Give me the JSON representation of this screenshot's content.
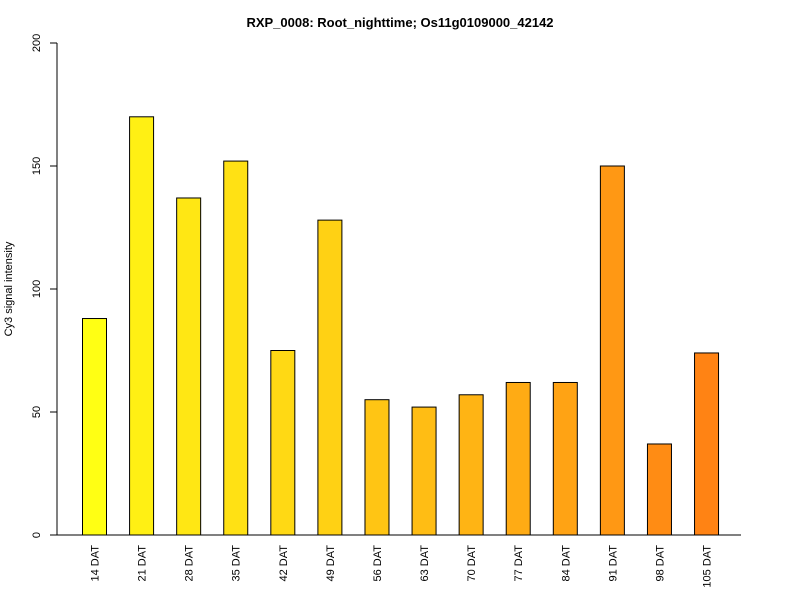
{
  "chart_data": {
    "type": "bar",
    "title": "RXP_0008: Root_nighttime; Os11g0109000_42142",
    "xlabel": "",
    "ylabel": "Cy3 signal intensity",
    "ylim": [
      0,
      200
    ],
    "yticks": [
      0,
      50,
      100,
      150,
      200
    ],
    "grid": false,
    "legend": "none",
    "categories": [
      "14 DAT",
      "21 DAT",
      "28 DAT",
      "35 DAT",
      "42 DAT",
      "49 DAT",
      "56 DAT",
      "63 DAT",
      "70 DAT",
      "77 DAT",
      "84 DAT",
      "91 DAT",
      "98 DAT",
      "105 DAT"
    ],
    "values": [
      88,
      170,
      137,
      152,
      75,
      128,
      55,
      52,
      57,
      62,
      62,
      150,
      37,
      74
    ],
    "colors": [
      "#FFFF14",
      "#FFF014",
      "#FFE714",
      "#FFE114",
      "#FFD914",
      "#FFD114",
      "#FFC514",
      "#FFBD14",
      "#FFB414",
      "#FFAB14",
      "#FFA314",
      "#FF9814",
      "#FF8C14",
      "#FF8314"
    ]
  }
}
